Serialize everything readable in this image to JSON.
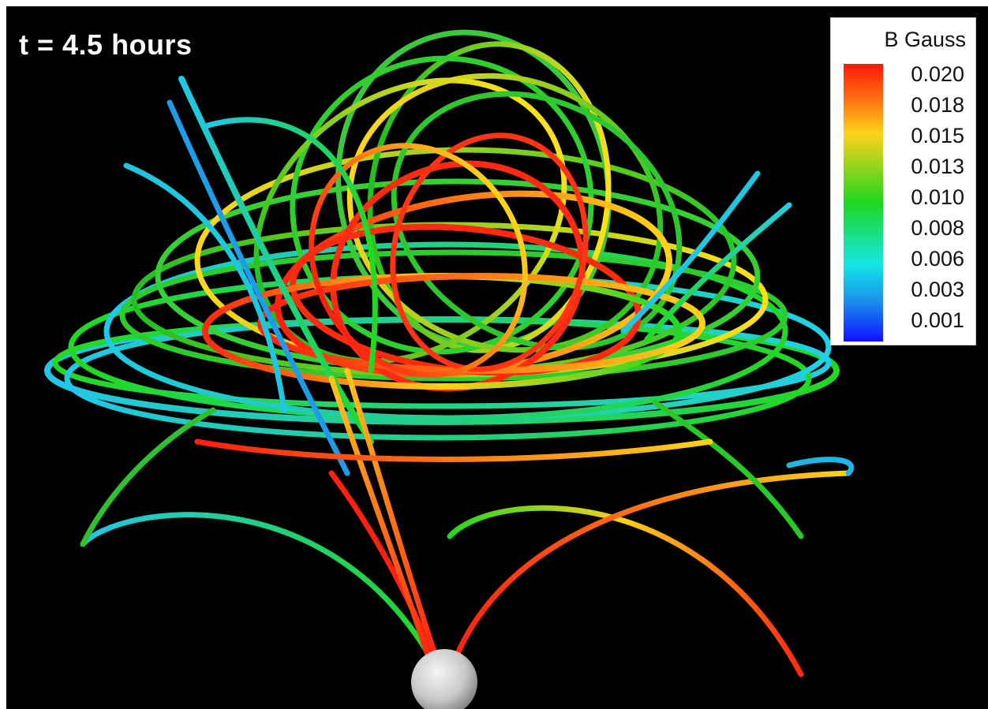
{
  "annotation": {
    "time": "t = 4.5 hours"
  },
  "legend": {
    "title": "B Gauss",
    "ticks": [
      "0.020",
      "0.018",
      "0.015",
      "0.013",
      "0.010",
      "0.008",
      "0.006",
      "0.003",
      "0.001"
    ]
  },
  "colors": {
    "background": "#000000",
    "frame": "#ffffff",
    "scale_high": "#ff1a0a",
    "scale_mid_high": "#ffd21a",
    "scale_mid": "#1fd61f",
    "scale_mid_low": "#15e6e6",
    "scale_low": "#1010ff",
    "sphere": "#cfcfcf"
  }
}
